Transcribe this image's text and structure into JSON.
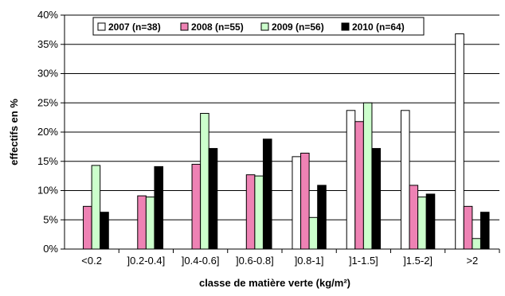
{
  "chart_data": {
    "type": "bar",
    "title": "",
    "xlabel": "classe de matière verte (kg/m²)",
    "ylabel": "effectifs en %",
    "ylim": [
      0,
      40
    ],
    "yticks": [
      "0%",
      "5%",
      "10%",
      "15%",
      "20%",
      "25%",
      "30%",
      "35%",
      "40%"
    ],
    "categories": [
      "<0.2",
      "]0.2-0.4]",
      "]0.4-0.6]",
      "]0.6-0.8]",
      "]0.8-1]",
      "]1-1.5]",
      "]1.5-2]",
      ">2"
    ],
    "grid": true,
    "legend": "top",
    "series": [
      {
        "name": "2007 (n=38)",
        "color": "#ffffff",
        "values": [
          0,
          0,
          0,
          0,
          15.8,
          23.7,
          23.7,
          36.8
        ]
      },
      {
        "name": "2008 (n=55)",
        "color": "#ee82b4",
        "values": [
          7.3,
          9.1,
          14.5,
          12.7,
          16.4,
          21.8,
          10.9,
          7.3
        ]
      },
      {
        "name": "2009 (n=56)",
        "color": "#ccffcc",
        "values": [
          14.3,
          8.9,
          23.2,
          12.5,
          5.4,
          25.0,
          8.9,
          1.8
        ]
      },
      {
        "name": "2010 (n=64)",
        "color": "#000000",
        "values": [
          6.3,
          14.1,
          17.2,
          18.8,
          10.9,
          17.2,
          9.4,
          6.3
        ]
      }
    ]
  }
}
